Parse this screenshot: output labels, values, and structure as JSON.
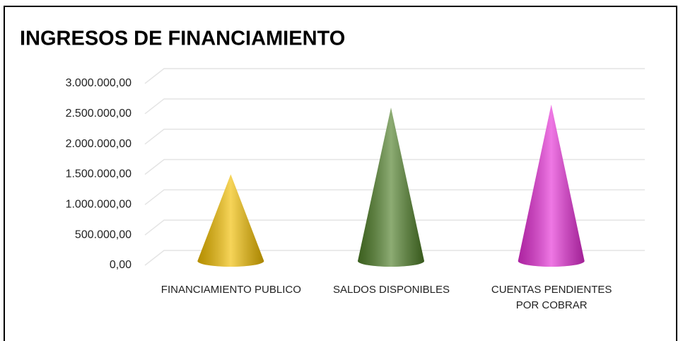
{
  "chart_data": {
    "type": "cone",
    "title": "INGRESOS DE FINANCIAMIENTO",
    "categories": [
      "FINANCIAMIENTO PUBLICO",
      "SALDOS DISPONIBLES",
      "CUENTAS PENDIENTES POR COBRAR"
    ],
    "values": [
      1500000,
      2600000,
      2650000
    ],
    "colors": [
      "#f2be00",
      "#4f7f28",
      "#e62fd6"
    ],
    "ylim": [
      0,
      3000000
    ],
    "yticks": [
      {
        "value": 0,
        "label": "0,00"
      },
      {
        "value": 500000,
        "label": "500.000,00"
      },
      {
        "value": 1000000,
        "label": "1.000.000,00"
      },
      {
        "value": 1500000,
        "label": "1.500.000,00"
      },
      {
        "value": 2000000,
        "label": "2.000.000,00"
      },
      {
        "value": 2500000,
        "label": "2.500.000,00"
      },
      {
        "value": 3000000,
        "label": "3.000.000,00"
      }
    ],
    "grid": true
  }
}
